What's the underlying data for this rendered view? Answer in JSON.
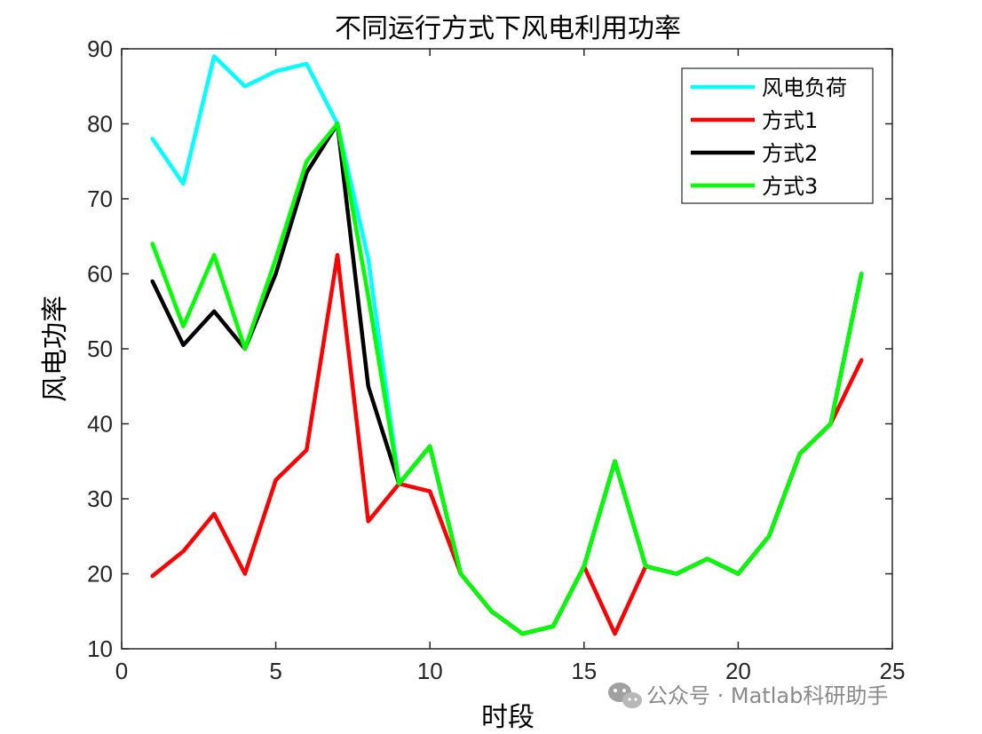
{
  "chart_data": {
    "type": "line",
    "title": "不同运行方式下风电利用功率",
    "xlabel": "时段",
    "ylabel": "风电功率",
    "xlim": [
      0,
      25
    ],
    "ylim": [
      10,
      90
    ],
    "xticks": [
      0,
      5,
      10,
      15,
      20,
      25
    ],
    "yticks": [
      10,
      20,
      30,
      40,
      50,
      60,
      70,
      80,
      90
    ],
    "grid": false,
    "legend_position": "top-right",
    "x": [
      1,
      2,
      3,
      4,
      5,
      6,
      7,
      8,
      9,
      10,
      11,
      12,
      13,
      14,
      15,
      16,
      17,
      18,
      19,
      20,
      21,
      22,
      23,
      24
    ],
    "series": [
      {
        "name": "风电负荷",
        "color": "#00FFFF",
        "values": [
          78,
          72,
          89,
          85,
          87,
          88,
          80,
          62,
          32,
          37,
          20,
          15,
          12,
          13,
          21,
          35,
          21,
          20,
          22,
          20,
          25,
          36,
          40,
          60
        ]
      },
      {
        "name": "方式1",
        "color": "#FF0000",
        "values": [
          19.7,
          23,
          28,
          20,
          32.5,
          36.5,
          62.5,
          27,
          32,
          31,
          20,
          15,
          12,
          13,
          21,
          12,
          21,
          20,
          22,
          20,
          25,
          36,
          40,
          48.5
        ]
      },
      {
        "name": "方式2",
        "color": "#000000",
        "values": [
          59,
          50.5,
          55,
          50,
          60,
          73.5,
          80,
          45,
          32,
          37,
          20,
          15,
          12,
          13,
          21,
          35,
          21,
          20,
          22,
          20,
          25,
          36,
          40,
          60
        ]
      },
      {
        "name": "方式3",
        "color": "#00FF00",
        "values": [
          64,
          53,
          62.5,
          50,
          62,
          75,
          80,
          57,
          32,
          37,
          20,
          15,
          12,
          13,
          21,
          35,
          21,
          20,
          22,
          20,
          25,
          36,
          40,
          60
        ]
      }
    ]
  },
  "watermark": {
    "text": "公众号 · Matlab科研助手",
    "icon": "wechat-icon"
  }
}
